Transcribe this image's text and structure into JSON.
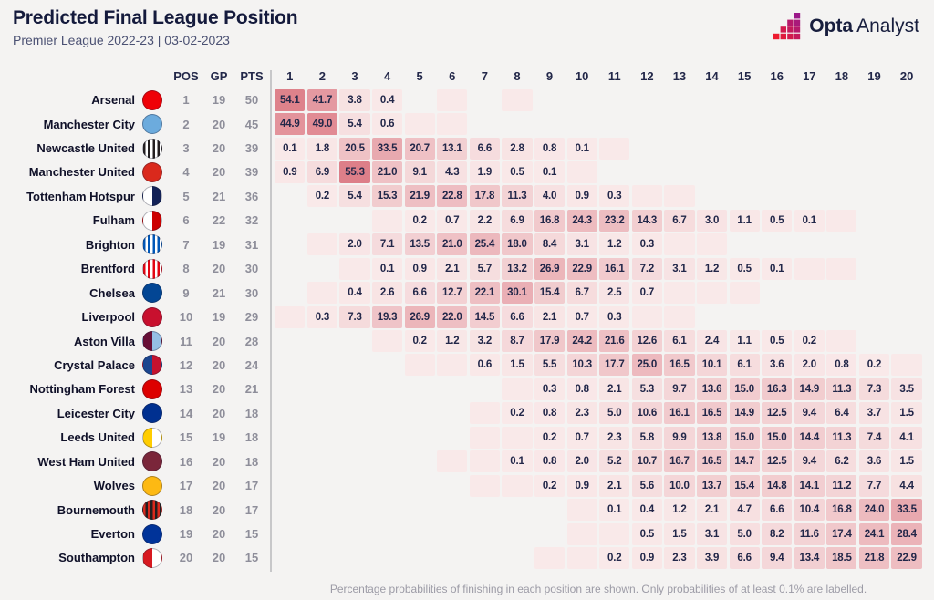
{
  "header": {
    "title": "Predicted Final League Position",
    "subtitle": "Premier League 2022-23 | 03-02-2023"
  },
  "brand": {
    "bold": "Opta",
    "regular": "Analyst"
  },
  "table": {
    "stat_headers": [
      "POS",
      "GP",
      "PTS"
    ]
  },
  "footer": {
    "note": "Percentage probabilities of finishing in each position are shown. Only probabilities of at least 0.1% are labelled."
  },
  "colors": {
    "background": "#f4f3f2",
    "heat_low": "#f9e9e9",
    "heat_high": "#dd7e88",
    "text_dark": "#222749",
    "stat_gray": "#8e8e9a",
    "divider": "#c7c7c9",
    "brand_gradient": [
      "#ED1B2F",
      "#9B1889"
    ]
  },
  "chart_data": {
    "type": "heatmap",
    "title": "Predicted Final League Position",
    "subtitle": "Premier League 2022-23 | 03-02-2023",
    "value_unit": "%",
    "x_categories": [
      1,
      2,
      3,
      4,
      5,
      6,
      7,
      8,
      9,
      10,
      11,
      12,
      13,
      14,
      15,
      16,
      17,
      18,
      19,
      20
    ],
    "note": "values of 0 represent tinted but unlabelled cells (probability below 0.1%); null cells are empty",
    "rows": [
      {
        "team": "Arsenal",
        "pos": 1,
        "gp": 19,
        "pts": 50,
        "badge": {
          "style": "solid",
          "c1": "#EF0107",
          "c2": "#9C824A"
        },
        "values": [
          54.1,
          41.7,
          3.8,
          0.4,
          null,
          0,
          null,
          0,
          null,
          null,
          null,
          null,
          null,
          null,
          null,
          null,
          null,
          null,
          null,
          null
        ]
      },
      {
        "team": "Manchester City",
        "pos": 2,
        "gp": 20,
        "pts": 45,
        "badge": {
          "style": "solid",
          "c1": "#6CABDD",
          "c2": "#1C2C5B"
        },
        "values": [
          44.9,
          49.0,
          5.4,
          0.6,
          0,
          0,
          null,
          null,
          null,
          null,
          null,
          null,
          null,
          null,
          null,
          null,
          null,
          null,
          null,
          null
        ]
      },
      {
        "team": "Newcastle United",
        "pos": 3,
        "gp": 20,
        "pts": 39,
        "badge": {
          "style": "stripes",
          "c1": "#241F20",
          "c2": "#FFFFFF"
        },
        "values": [
          0.1,
          1.8,
          20.5,
          33.5,
          20.7,
          13.1,
          6.6,
          2.8,
          0.8,
          0.1,
          0,
          null,
          null,
          null,
          null,
          null,
          null,
          null,
          null,
          null
        ]
      },
      {
        "team": "Manchester United",
        "pos": 4,
        "gp": 20,
        "pts": 39,
        "badge": {
          "style": "solid",
          "c1": "#DA291C",
          "c2": "#FBE122"
        },
        "values": [
          0.9,
          6.9,
          55.3,
          21.0,
          9.1,
          4.3,
          1.9,
          0.5,
          0.1,
          0,
          null,
          null,
          null,
          null,
          null,
          null,
          null,
          null,
          null,
          null
        ]
      },
      {
        "team": "Tottenham Hotspur",
        "pos": 5,
        "gp": 21,
        "pts": 36,
        "badge": {
          "style": "half",
          "c1": "#FFFFFF",
          "c2": "#132257"
        },
        "values": [
          null,
          0.2,
          5.4,
          15.3,
          21.9,
          22.8,
          17.8,
          11.3,
          4.0,
          0.9,
          0.3,
          0,
          0,
          null,
          null,
          null,
          null,
          null,
          null,
          null
        ]
      },
      {
        "team": "Fulham",
        "pos": 6,
        "gp": 22,
        "pts": 32,
        "badge": {
          "style": "half",
          "c1": "#FFFFFF",
          "c2": "#CC0000"
        },
        "values": [
          null,
          null,
          null,
          0,
          0.2,
          0.7,
          2.2,
          6.9,
          16.8,
          24.3,
          23.2,
          14.3,
          6.7,
          3.0,
          1.1,
          0.5,
          0.1,
          0,
          null,
          null
        ]
      },
      {
        "team": "Brighton",
        "pos": 7,
        "gp": 19,
        "pts": 31,
        "badge": {
          "style": "stripes",
          "c1": "#0057B8",
          "c2": "#FFFFFF"
        },
        "values": [
          null,
          0,
          2.0,
          7.1,
          13.5,
          21.0,
          25.4,
          18.0,
          8.4,
          3.1,
          1.2,
          0.3,
          0,
          0,
          null,
          null,
          null,
          null,
          null,
          null
        ]
      },
      {
        "team": "Brentford",
        "pos": 8,
        "gp": 20,
        "pts": 30,
        "badge": {
          "style": "stripes",
          "c1": "#E30613",
          "c2": "#FFFFFF"
        },
        "values": [
          null,
          null,
          0,
          0.1,
          0.9,
          2.1,
          5.7,
          13.2,
          26.9,
          22.9,
          16.1,
          7.2,
          3.1,
          1.2,
          0.5,
          0.1,
          0,
          0,
          null,
          null
        ]
      },
      {
        "team": "Chelsea",
        "pos": 9,
        "gp": 21,
        "pts": 30,
        "badge": {
          "style": "solid",
          "c1": "#034694",
          "c2": "#FFFFFF"
        },
        "values": [
          null,
          0,
          0.4,
          2.6,
          6.6,
          12.7,
          22.1,
          30.1,
          15.4,
          6.7,
          2.5,
          0.7,
          0,
          0,
          0,
          null,
          null,
          null,
          null,
          null
        ]
      },
      {
        "team": "Liverpool",
        "pos": 10,
        "gp": 19,
        "pts": 29,
        "badge": {
          "style": "solid",
          "c1": "#C8102E",
          "c2": "#F6EB61"
        },
        "values": [
          0,
          0.3,
          7.3,
          19.3,
          26.9,
          22.0,
          14.5,
          6.6,
          2.1,
          0.7,
          0.3,
          0,
          0,
          null,
          null,
          null,
          null,
          null,
          null,
          null
        ]
      },
      {
        "team": "Aston Villa",
        "pos": 11,
        "gp": 20,
        "pts": 28,
        "badge": {
          "style": "half",
          "c1": "#670E36",
          "c2": "#95BFE5"
        },
        "values": [
          null,
          null,
          null,
          0,
          0.2,
          1.2,
          3.2,
          8.7,
          17.9,
          24.2,
          21.6,
          12.6,
          6.1,
          2.4,
          1.1,
          0.5,
          0.2,
          0,
          null,
          null
        ]
      },
      {
        "team": "Crystal Palace",
        "pos": 12,
        "gp": 20,
        "pts": 24,
        "badge": {
          "style": "half",
          "c1": "#1B458F",
          "c2": "#C4122E"
        },
        "values": [
          null,
          null,
          null,
          null,
          0,
          0,
          0.6,
          1.5,
          5.5,
          10.3,
          17.7,
          25.0,
          16.5,
          10.1,
          6.1,
          3.6,
          2.0,
          0.8,
          0.2,
          0
        ]
      },
      {
        "team": "Nottingham Forest",
        "pos": 13,
        "gp": 20,
        "pts": 21,
        "badge": {
          "style": "solid",
          "c1": "#DD0000",
          "c2": "#FFFFFF"
        },
        "values": [
          null,
          null,
          null,
          null,
          null,
          null,
          null,
          0,
          0.3,
          0.8,
          2.1,
          5.3,
          9.7,
          13.6,
          15.0,
          16.3,
          14.9,
          11.3,
          7.3,
          3.5
        ]
      },
      {
        "team": "Leicester City",
        "pos": 14,
        "gp": 20,
        "pts": 18,
        "badge": {
          "style": "solid",
          "c1": "#003090",
          "c2": "#FDBE11"
        },
        "values": [
          null,
          null,
          null,
          null,
          null,
          null,
          0,
          0.2,
          0.8,
          2.3,
          5.0,
          10.6,
          16.1,
          16.5,
          14.9,
          12.5,
          9.4,
          6.4,
          3.7,
          1.5
        ]
      },
      {
        "team": "Leeds United",
        "pos": 15,
        "gp": 19,
        "pts": 18,
        "badge": {
          "style": "half",
          "c1": "#FFCD00",
          "c2": "#FFFFFF"
        },
        "values": [
          null,
          null,
          null,
          null,
          null,
          null,
          0,
          0,
          0.2,
          0.7,
          2.3,
          5.8,
          9.9,
          13.8,
          15.0,
          15.0,
          14.4,
          11.3,
          7.4,
          4.1
        ]
      },
      {
        "team": "West Ham United",
        "pos": 16,
        "gp": 20,
        "pts": 18,
        "badge": {
          "style": "solid",
          "c1": "#7A263A",
          "c2": "#1BB1E7"
        },
        "values": [
          null,
          null,
          null,
          null,
          null,
          0,
          0,
          0.1,
          0.8,
          2.0,
          5.2,
          10.7,
          16.7,
          16.5,
          14.7,
          12.5,
          9.4,
          6.2,
          3.6,
          1.5
        ]
      },
      {
        "team": "Wolves",
        "pos": 17,
        "gp": 20,
        "pts": 17,
        "badge": {
          "style": "solid",
          "c1": "#FDB913",
          "c2": "#231F20"
        },
        "values": [
          null,
          null,
          null,
          null,
          null,
          null,
          0,
          0,
          0.2,
          0.9,
          2.1,
          5.6,
          10.0,
          13.7,
          15.4,
          14.8,
          14.1,
          11.2,
          7.7,
          4.4
        ]
      },
      {
        "team": "Bournemouth",
        "pos": 18,
        "gp": 20,
        "pts": 17,
        "badge": {
          "style": "stripes",
          "c1": "#DA291C",
          "c2": "#241F20"
        },
        "values": [
          null,
          null,
          null,
          null,
          null,
          null,
          null,
          null,
          null,
          0,
          0.1,
          0.4,
          1.2,
          2.1,
          4.7,
          6.6,
          10.4,
          16.8,
          24.0,
          33.5
        ]
      },
      {
        "team": "Everton",
        "pos": 19,
        "gp": 20,
        "pts": 15,
        "badge": {
          "style": "solid",
          "c1": "#003399",
          "c2": "#FFFFFF"
        },
        "values": [
          null,
          null,
          null,
          null,
          null,
          null,
          null,
          null,
          null,
          0,
          0,
          0.5,
          1.5,
          3.1,
          5.0,
          8.2,
          11.6,
          17.4,
          24.1,
          28.4
        ]
      },
      {
        "team": "Southampton",
        "pos": 20,
        "gp": 20,
        "pts": 15,
        "badge": {
          "style": "half",
          "c1": "#D71920",
          "c2": "#FFFFFF"
        },
        "values": [
          null,
          null,
          null,
          null,
          null,
          null,
          null,
          null,
          0,
          0,
          0.2,
          0.9,
          2.3,
          3.9,
          6.6,
          9.4,
          13.4,
          18.5,
          21.8,
          22.9
        ]
      }
    ]
  }
}
